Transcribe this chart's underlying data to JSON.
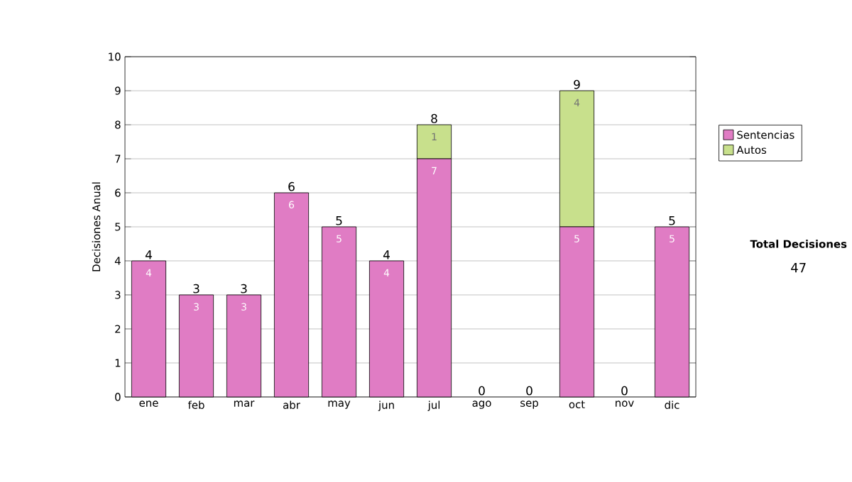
{
  "chart_data": {
    "type": "bar",
    "stacked": true,
    "ylabel": "Decisiones Anual",
    "categories": [
      "ene",
      "feb",
      "mar",
      "abr",
      "may",
      "jun",
      "jul",
      "ago",
      "sep",
      "oct",
      "nov",
      "dic"
    ],
    "series": [
      {
        "name": "Sentencias",
        "color": "#e07cc4",
        "values": [
          4,
          3,
          3,
          6,
          5,
          4,
          7,
          0,
          0,
          5,
          0,
          5
        ],
        "value_labels": [
          "4",
          "3",
          "3",
          "6",
          "5",
          "4",
          "7",
          null,
          null,
          "5",
          null,
          "5"
        ]
      },
      {
        "name": "Autos",
        "color": "#c8e08c",
        "values": [
          0,
          0,
          0,
          0,
          0,
          0,
          1,
          0,
          0,
          4,
          0,
          0
        ],
        "value_labels": [
          null,
          null,
          null,
          null,
          null,
          null,
          "1",
          null,
          null,
          "4",
          null,
          null
        ]
      }
    ],
    "totals": [
      "4",
      "3",
      "3",
      "6",
      "5",
      "4",
      "8",
      "0",
      "0",
      "9",
      "0",
      "5"
    ],
    "ylim": [
      0,
      10
    ],
    "yticks": [
      0,
      1,
      2,
      3,
      4,
      5,
      6,
      7,
      8,
      9,
      10
    ],
    "grid": "y",
    "legend": "right",
    "annotations": [
      "Total Decisiones",
      "47"
    ]
  }
}
